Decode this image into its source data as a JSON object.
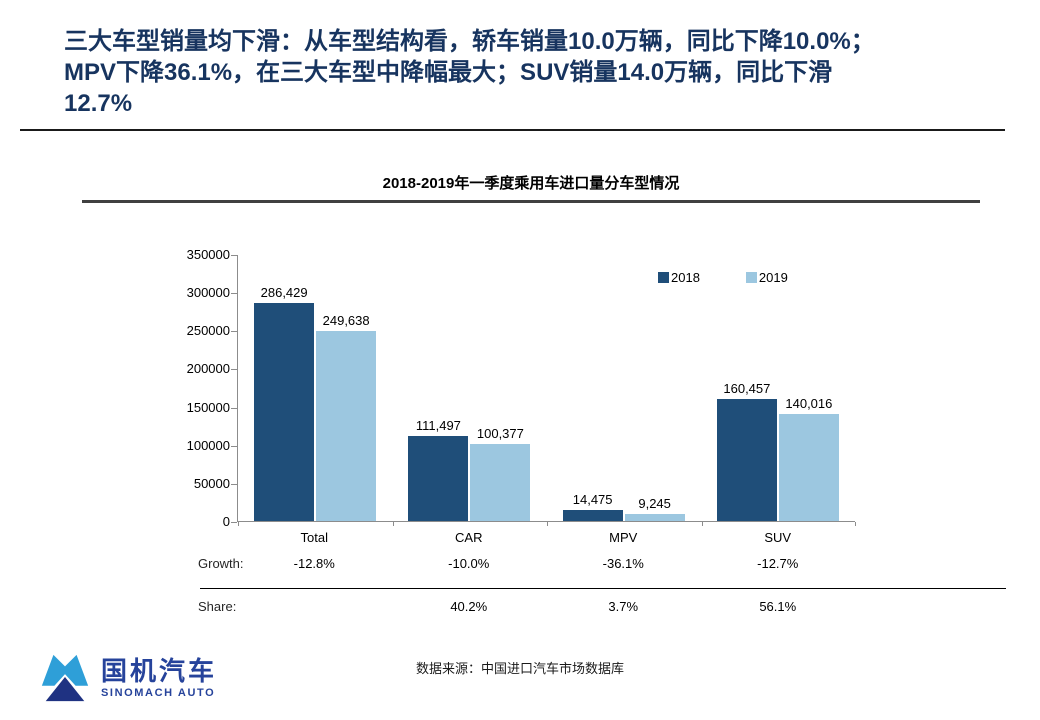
{
  "slide": {
    "title_lines": [
      "三大车型销量均下滑：从车型结构看，轿车销量10.0万辆，同比下降10.0%；",
      "MPV下降36.1%，在三大车型中降幅最大；SUV销量14.0万辆，同比下滑",
      "12.7%"
    ],
    "title_color": "#17345F"
  },
  "chart_data": {
    "type": "bar",
    "title": "2018-2019年一季度乘用车进口量分车型情况",
    "categories": [
      "Total",
      "CAR",
      "MPV",
      "SUV"
    ],
    "series": [
      {
        "name": "2018",
        "color": "#1F4E79",
        "values": [
          286429,
          111497,
          14475,
          160457
        ],
        "labels": [
          "286,429",
          "111,497",
          "14,475",
          "160,457"
        ]
      },
      {
        "name": "2019",
        "color": "#9CC7E0",
        "values": [
          249638,
          100377,
          9245,
          140016
        ],
        "labels": [
          "249,638",
          "100,377",
          "9,245",
          "140,016"
        ]
      }
    ],
    "ylim": [
      0,
      350000
    ],
    "yticks": [
      350000,
      300000,
      250000,
      200000,
      150000,
      100000,
      50000,
      0
    ],
    "grid": false,
    "legend_position": "top-right",
    "annotations": {
      "growth_label": "Growth:",
      "growth": [
        "-12.8%",
        "-10.0%",
        "-36.1%",
        "-12.7%"
      ],
      "share_label": "Share:",
      "share": [
        "",
        "40.2%",
        "3.7%",
        "56.1%"
      ]
    }
  },
  "footer": {
    "source": "数据来源：中国进口汽车市场数据库",
    "logo": {
      "name_cn": "国机汽车",
      "name_en": "SINOMACH AUTO"
    }
  }
}
